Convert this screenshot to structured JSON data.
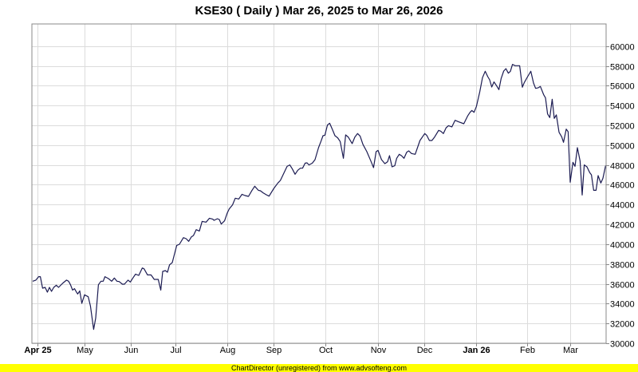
{
  "chart_data": {
    "type": "line",
    "title": "KSE30 ( Daily ) Mar 26, 2025 to Mar 26, 2026",
    "xlabel": "",
    "ylabel": "",
    "x_unit": "approximate day index from Mar 26, 2025",
    "ylim": [
      30000,
      61500
    ],
    "xlim": [
      0,
      362.5
    ],
    "grid": true,
    "line_color": "#1b1b52",
    "y_ticks": [
      30000,
      32000,
      34000,
      36000,
      38000,
      40000,
      42000,
      44000,
      46000,
      48000,
      50000,
      52000,
      54000,
      56000,
      58000,
      60000
    ],
    "x_ticks": [
      {
        "label": "Apr 25",
        "x": 6,
        "bold": true
      },
      {
        "label": "May",
        "x": 35.4,
        "bold": false
      },
      {
        "label": "Jun",
        "x": 64.4,
        "bold": false
      },
      {
        "label": "Jul",
        "x": 92.4,
        "bold": false
      },
      {
        "label": "Aug",
        "x": 125.2,
        "bold": false
      },
      {
        "label": "Sep",
        "x": 154.2,
        "bold": false
      },
      {
        "label": "Oct",
        "x": 186.4,
        "bold": false
      },
      {
        "label": "Nov",
        "x": 219.5,
        "bold": false
      },
      {
        "label": "Dec",
        "x": 248.7,
        "bold": false
      },
      {
        "label": "Jan 26",
        "x": 280.9,
        "bold": true
      },
      {
        "label": "Feb",
        "x": 312.9,
        "bold": false
      },
      {
        "label": "Mar",
        "x": 340.2,
        "bold": false
      }
    ],
    "series": [
      {
        "name": "KSE30",
        "x": [
          3,
          5,
          6.7,
          7.8,
          9.2,
          10.8,
          12.2,
          13.5,
          14.8,
          16.2,
          17.8,
          19.2,
          21.7,
          24.2,
          25.5,
          26.7,
          28,
          29.2,
          30,
          31.2,
          32.5,
          33.8,
          35.5,
          37.8,
          39.2,
          41.2,
          42.5,
          44.2,
          45.8,
          47.2,
          48.3,
          50.5,
          52.5,
          54.2,
          55.8,
          57.2,
          59.2,
          60.5,
          62.8,
          64.2,
          65.8,
          67.5,
          69.5,
          71.7,
          72.8,
          75,
          77.2,
          79.2,
          81.7,
          83.3,
          84.5,
          86.2,
          87.5,
          88.8,
          90.5,
          93.3,
          95,
          97.5,
          99.2,
          100.8,
          102.5,
          103.8,
          105.5,
          107.5,
          109.2,
          111.7,
          113.8,
          115.8,
          116.7,
          118.8,
          120,
          121.2,
          123.3,
          125,
          126.2,
          128.3,
          130,
          132.2,
          134.2,
          136.2,
          138.3,
          140.5,
          142.2,
          144.5,
          145.8,
          147.5,
          149.5,
          151.2,
          154.2,
          156.7,
          158.3,
          160.5,
          162.5,
          164.2,
          165.8,
          167.5,
          169.2,
          170.8,
          172.2,
          173.8,
          175,
          176.2,
          178.3,
          180,
          182.2,
          183.8,
          185,
          186.2,
          187.8,
          189.2,
          190.8,
          192.5,
          194.2,
          195.8,
          197.8,
          199.2,
          200.8,
          203.3,
          205,
          206.7,
          208.3,
          210,
          212.5,
          215,
          216.7,
          218.3,
          219.5,
          221.7,
          223.8,
          225.5,
          226.7,
          228.3,
          230,
          231.2,
          232.8,
          234.2,
          235.8,
          237.5,
          238.8,
          240.5,
          242.8,
          245.8,
          248.8,
          250,
          251.7,
          253.3,
          255,
          257.5,
          258.8,
          260.5,
          262.2,
          263.7,
          265.8,
          267.8,
          270,
          273.3,
          275.8,
          277.2,
          278.3,
          279.7,
          281.2,
          283.3,
          285,
          286.7,
          288.3,
          289.5,
          290.8,
          292.2,
          293.8,
          295.3,
          296.7,
          298.3,
          299.7,
          301.2,
          302.5,
          303.8,
          305.5,
          307.2,
          308.3,
          310,
          311.2,
          313.3,
          315.3,
          317,
          318.3,
          320,
          321.3,
          323.3,
          324.5,
          325.8,
          327.2,
          328.7,
          330,
          331.3,
          333,
          334.7,
          335.8,
          337.5,
          338.7,
          340,
          341.7,
          343,
          344.5,
          346.2,
          347.5,
          348.8,
          350.5,
          352.2,
          353.3,
          354.7,
          356.2,
          357.5,
          359.2,
          360.5,
          362.2
        ],
        "values": [
          36260,
          36370,
          36720,
          36720,
          35560,
          35640,
          35160,
          35640,
          35240,
          35640,
          35860,
          35640,
          36040,
          36370,
          36260,
          35910,
          35370,
          35510,
          35290,
          34970,
          35290,
          34030,
          34890,
          34700,
          33760,
          31400,
          32550,
          35910,
          36260,
          36260,
          36720,
          36530,
          36260,
          36580,
          36260,
          36230,
          35960,
          35960,
          36370,
          36180,
          36580,
          36980,
          36850,
          37600,
          37520,
          36900,
          36900,
          36450,
          36450,
          35370,
          37250,
          37330,
          37170,
          37920,
          38140,
          39880,
          39990,
          40660,
          40560,
          40290,
          40740,
          40880,
          41470,
          41330,
          42300,
          42220,
          42620,
          42540,
          42410,
          42570,
          42490,
          42030,
          42360,
          43160,
          43560,
          43970,
          44640,
          44560,
          45040,
          44910,
          44830,
          45440,
          45850,
          45440,
          45390,
          45180,
          44990,
          44850,
          45630,
          46170,
          46440,
          47190,
          47860,
          48000,
          47590,
          47060,
          47460,
          47670,
          47670,
          48180,
          48210,
          48000,
          48180,
          48530,
          49740,
          50410,
          50950,
          51000,
          52030,
          52210,
          51620,
          50950,
          50740,
          50360,
          48670,
          51030,
          50820,
          50150,
          50820,
          51170,
          50900,
          50090,
          49340,
          48400,
          47730,
          49340,
          49470,
          48530,
          48130,
          48320,
          48940,
          47810,
          47920,
          48670,
          49070,
          48940,
          48670,
          49290,
          49420,
          49150,
          49070,
          50470,
          51170,
          51000,
          50470,
          50470,
          50820,
          51490,
          51410,
          51170,
          51760,
          51970,
          51840,
          52510,
          52350,
          52160,
          52970,
          53310,
          53500,
          53310,
          53910,
          55380,
          56810,
          57450,
          56910,
          56590,
          55870,
          56380,
          56000,
          55600,
          56730,
          57480,
          57720,
          57260,
          57450,
          58150,
          58020,
          58020,
          58020,
          55840,
          56320,
          56910,
          57450,
          56270,
          55730,
          55790,
          55920,
          55110,
          54770,
          53150,
          52780,
          54630,
          52700,
          53050,
          51300,
          50820,
          50280,
          51620,
          51350,
          46250,
          48270,
          47860,
          49740,
          48400,
          44960,
          48000,
          47810,
          47240,
          47000,
          45440,
          45440,
          46920,
          46170,
          46650,
          47940
        ]
      }
    ]
  },
  "footer": {
    "text": "ChartDirector (unregistered) from www.advsofteng.com",
    "background": "#ffff00"
  }
}
